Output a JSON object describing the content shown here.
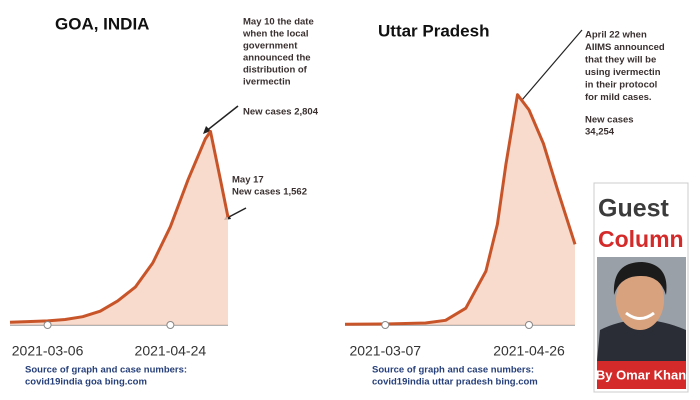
{
  "chart_data": [
    {
      "type": "line",
      "title": "GOA, INDIA",
      "x": [
        "2021-02-19",
        "2021-02-26",
        "2021-03-06",
        "2021-03-13",
        "2021-03-20",
        "2021-03-27",
        "2021-04-03",
        "2021-04-10",
        "2021-04-17",
        "2021-04-24",
        "2021-05-01",
        "2021-05-08",
        "2021-05-10",
        "2021-05-14",
        "2021-05-17"
      ],
      "series": [
        {
          "name": "New cases",
          "color": "#c8552a",
          "values": [
            40,
            50,
            60,
            80,
            120,
            200,
            350,
            550,
            900,
            1424,
            2100,
            2700,
            2804,
            2100,
            1562
          ]
        }
      ],
      "xlim": [
        "2021-02-19",
        "2021-05-17"
      ],
      "xticks": [
        "2021-03-06",
        "2021-04-24"
      ],
      "ylim": [
        0,
        3000
      ],
      "annotations": [
        {
          "lines": [
            "May 10  the date",
            "when the local",
            "government",
            "announced the",
            "distribution of",
            "ivermectin"
          ]
        },
        {
          "lines": [
            "New cases 2,804"
          ]
        },
        {
          "lines": [
            "May 17",
            "New cases 1,562"
          ]
        }
      ],
      "source": [
        "Source of graph and case numbers:",
        "covid19india goa bing.com"
      ]
    },
    {
      "type": "line",
      "title": "Uttar Pradesh",
      "x": [
        "2021-02-21",
        "2021-03-07",
        "2021-03-21",
        "2021-03-28",
        "2021-04-04",
        "2021-04-11",
        "2021-04-15",
        "2021-04-18",
        "2021-04-22",
        "2021-04-26",
        "2021-05-01",
        "2021-05-06",
        "2021-05-12"
      ],
      "series": [
        {
          "name": "New cases",
          "color": "#c8552a",
          "values": [
            100,
            150,
            300,
            700,
            2500,
            8000,
            15000,
            24000,
            34254,
            32000,
            27000,
            20000,
            12000
          ]
        }
      ],
      "xlim": [
        "2021-02-21",
        "2021-05-12"
      ],
      "xticks": [
        "2021-03-07",
        "2021-04-26"
      ],
      "ylim": [
        0,
        36000
      ],
      "annotations": [
        {
          "lines": [
            "April 22 when",
            "AIIMS announced",
            "that they will be",
            "using ivermectin",
            "in their protocol",
            "for mild cases."
          ]
        },
        {
          "lines": [
            "New cases",
            "34,254"
          ]
        }
      ],
      "source": [
        "Source of graph and case numbers:",
        "covid19india uttar pradesh bing.com"
      ]
    }
  ],
  "column": {
    "heading": [
      "Guest",
      "Column"
    ],
    "byline": "By Omar Khan"
  }
}
